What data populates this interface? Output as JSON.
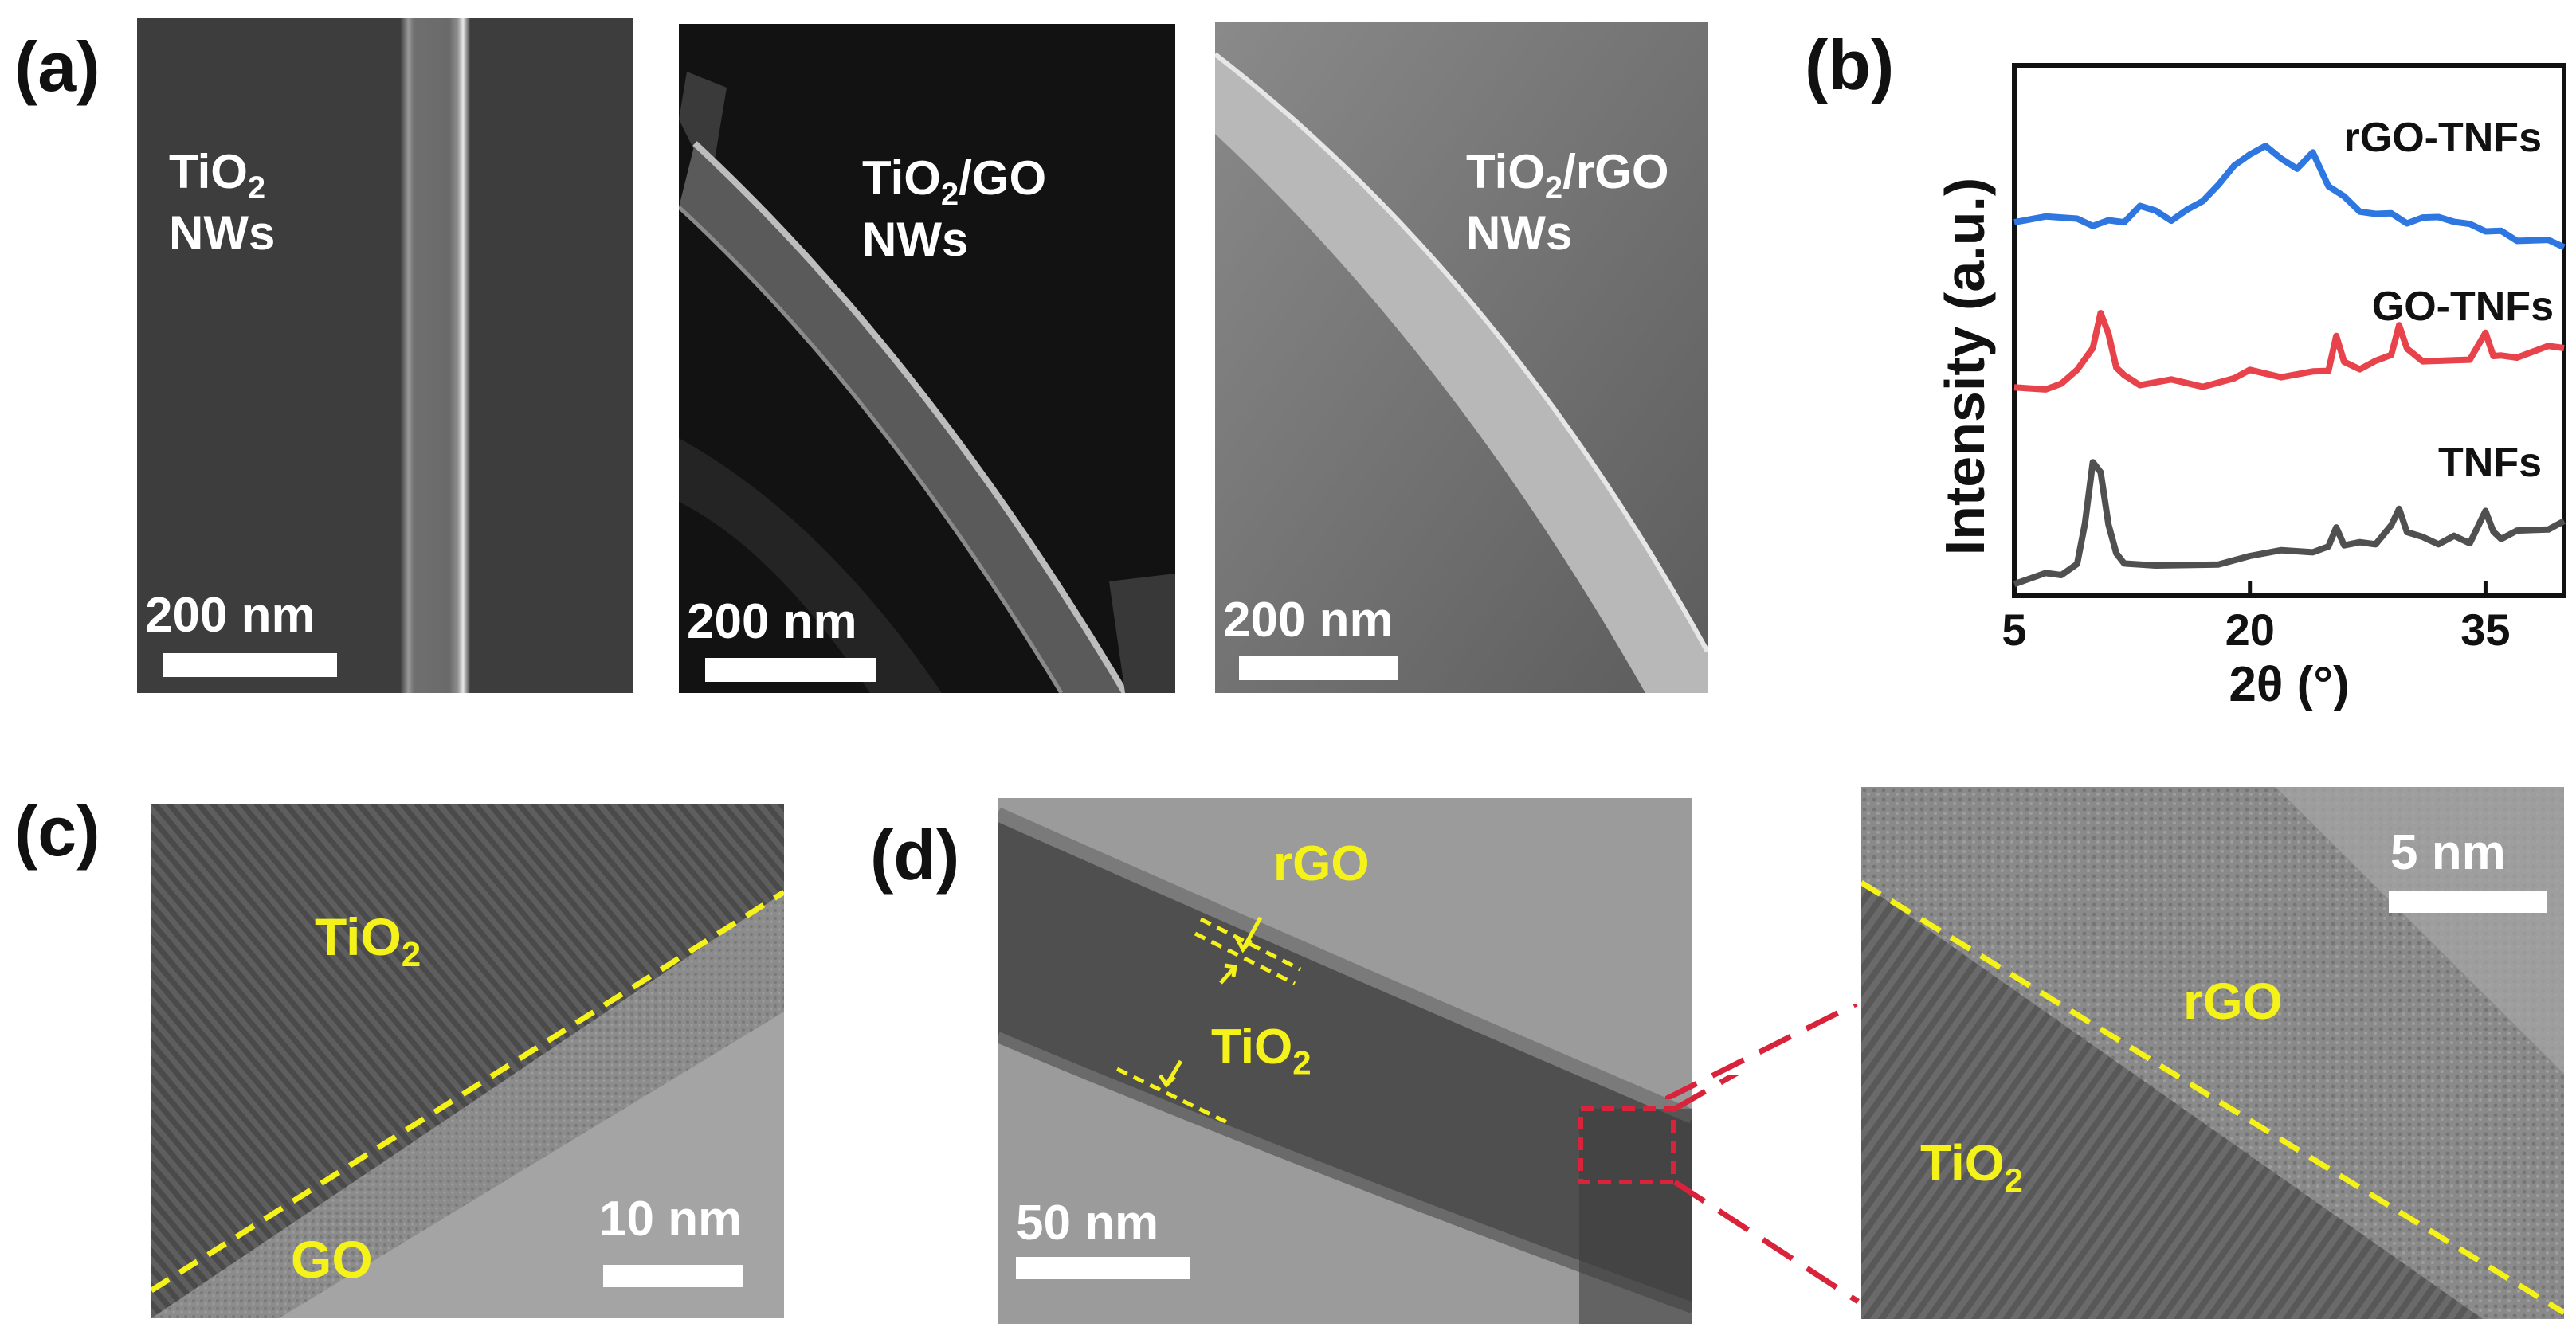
{
  "panel_letters": {
    "a": "(a)",
    "b": "(b)",
    "c": "(c)",
    "d": "(d)"
  },
  "sem_images": [
    {
      "label_main": "TiO",
      "label_sub": "2",
      "label_rest": "",
      "label_line2": "NWs",
      "scale": "200 nm"
    },
    {
      "label_main": "TiO",
      "label_sub": "2",
      "label_rest": "/GO",
      "label_line2": "NWs",
      "scale": "200 nm"
    },
    {
      "label_main": "TiO",
      "label_sub": "2",
      "label_rest": "/rGO",
      "label_line2": "NWs",
      "scale": "200 nm"
    }
  ],
  "panel_c": {
    "tio2_main": "TiO",
    "tio2_sub": "2",
    "go": "GO",
    "scale": "10 nm"
  },
  "panel_d": {
    "rgo": "rGO",
    "tio2_main": "TiO",
    "tio2_sub": "2",
    "scale": "50 nm",
    "zoom_rgo": "rGO",
    "zoom_tio2_main": "TiO",
    "zoom_tio2_sub": "2",
    "zoom_scale": "5 nm"
  },
  "colors": {
    "blue": "#2f77e0",
    "red": "#e8434b",
    "grey": "#505050",
    "yellow": "#f5f21a",
    "zoom_box": "#d9233a"
  },
  "chart_data": {
    "type": "line",
    "ylabel": "Intensity (a.u.)",
    "xlabel": "2θ (°)",
    "xlim": [
      5,
      40
    ],
    "xticks": [
      5,
      20,
      35
    ],
    "ylim": [
      0,
      10
    ],
    "y_ticks_shown": false,
    "series": [
      {
        "name": "rGO-TNFs",
        "color": "#2f77e0",
        "x": [
          5,
          7,
          9,
          10,
          11,
          12,
          13,
          14,
          15,
          16,
          17,
          18,
          19,
          20,
          21,
          22,
          23,
          24,
          25,
          26,
          27,
          28,
          29,
          30,
          31,
          32,
          33,
          34,
          35,
          36,
          37,
          38,
          39,
          40
        ],
        "values": [
          7.1,
          7.15,
          7.05,
          7.0,
          7.05,
          7.1,
          7.35,
          7.2,
          7.1,
          7.25,
          7.5,
          7.75,
          8.05,
          8.35,
          8.45,
          8.3,
          8.05,
          8.3,
          7.75,
          7.5,
          7.3,
          7.2,
          7.15,
          7.05,
          7.1,
          7.2,
          7.05,
          6.95,
          6.9,
          6.85,
          6.75,
          6.7,
          6.65,
          6.6
        ]
      },
      {
        "name": "GO-TNFs",
        "color": "#e8434b",
        "x": [
          5,
          7,
          8,
          9,
          10,
          10.5,
          11,
          11.5,
          12,
          13,
          15,
          17,
          19,
          20,
          22,
          24,
          25,
          25.5,
          26,
          27,
          28,
          29,
          29.5,
          30,
          31,
          32,
          33,
          34,
          35,
          35.5,
          36,
          37,
          38,
          39,
          40
        ],
        "values": [
          3.9,
          3.95,
          4.0,
          4.2,
          4.7,
          5.3,
          5.0,
          4.3,
          4.1,
          4.0,
          4.05,
          4.0,
          4.1,
          4.2,
          4.15,
          4.2,
          4.3,
          4.9,
          4.35,
          4.3,
          4.4,
          4.6,
          5.1,
          4.6,
          4.45,
          4.4,
          4.5,
          4.45,
          4.9,
          4.55,
          4.5,
          4.55,
          4.6,
          4.65,
          4.7
        ]
      },
      {
        "name": "TNFs",
        "color": "#505050",
        "x": [
          5,
          7,
          8,
          9,
          9.5,
          10,
          10.5,
          11,
          11.5,
          12,
          14,
          16,
          18,
          20,
          22,
          24,
          25,
          25.5,
          26,
          27,
          28,
          29,
          29.5,
          30,
          31,
          32,
          33,
          34,
          35,
          35.5,
          36,
          37,
          38,
          39,
          40
        ],
        "values": [
          0.25,
          0.4,
          0.45,
          0.6,
          1.3,
          2.55,
          2.3,
          1.4,
          0.8,
          0.55,
          0.6,
          0.55,
          0.65,
          0.75,
          0.8,
          0.85,
          0.9,
          1.35,
          0.95,
          0.95,
          1.0,
          1.3,
          1.7,
          1.2,
          1.05,
          1.0,
          1.1,
          1.05,
          1.6,
          1.15,
          1.1,
          1.2,
          1.3,
          1.25,
          1.35
        ]
      }
    ],
    "series_labels": [
      "rGO-TNFs",
      "GO-TNFs",
      "TNFs"
    ]
  }
}
